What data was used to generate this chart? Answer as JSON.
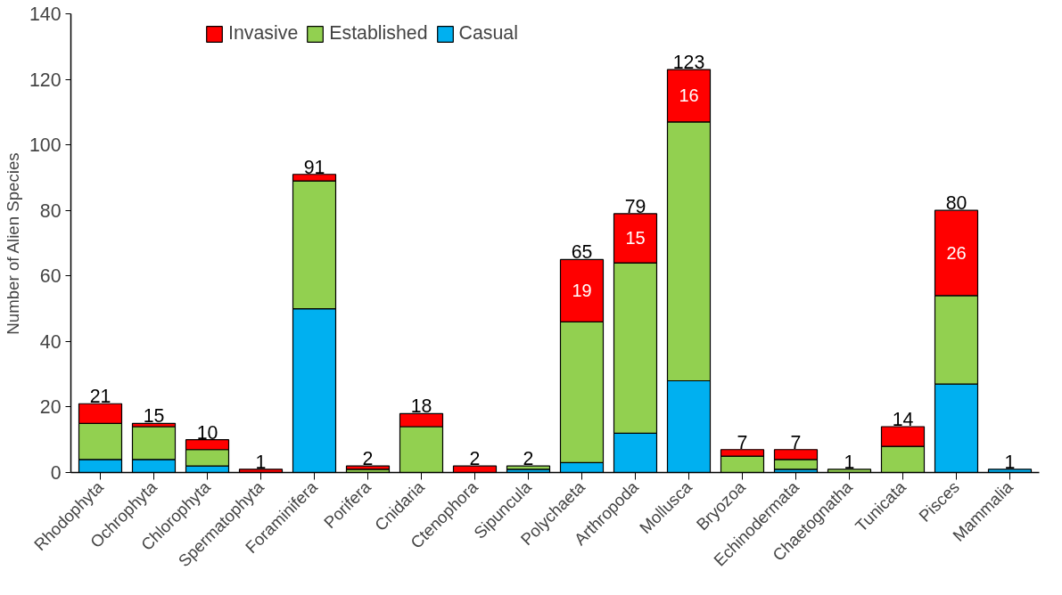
{
  "chart_data": {
    "type": "bar",
    "stacked": true,
    "ylabel": "Number of Alien Species",
    "categories": [
      "Rhodophyta",
      "Ochrophyta",
      "Chlorophyta",
      "Spermatophyta",
      "Foraminifera",
      "Porifera",
      "Cnidaria",
      "Ctenophora",
      "Sipuncula",
      "Polychaeta",
      "Arthropoda",
      "Mollusca",
      "Bryozoa",
      "Echinodermata",
      "Chaetognatha",
      "Tunicata",
      "Pisces",
      "Mammalia"
    ],
    "series": [
      {
        "name": "Casual",
        "color": "#00b0f0",
        "values": [
          4,
          4,
          2,
          0,
          50,
          0,
          0,
          0,
          1,
          3,
          12,
          28,
          0,
          1,
          0,
          0,
          27,
          1
        ]
      },
      {
        "name": "Established",
        "color": "#92d050",
        "values": [
          11,
          10,
          5,
          0,
          39,
          1,
          14,
          0,
          1,
          43,
          52,
          79,
          5,
          3,
          1,
          8,
          27,
          0
        ]
      },
      {
        "name": "Invasive",
        "color": "#ff0000",
        "values": [
          6,
          1,
          3,
          1,
          2,
          1,
          4,
          2,
          0,
          19,
          15,
          16,
          2,
          3,
          0,
          6,
          26,
          0
        ],
        "value_labels": [
          null,
          null,
          null,
          null,
          null,
          null,
          null,
          null,
          null,
          "19",
          "15",
          "16",
          null,
          null,
          null,
          null,
          "26",
          null
        ]
      }
    ],
    "totals": [
      "21",
      "15",
      "10",
      "1",
      "91",
      "2",
      "18",
      "2",
      "2",
      "65",
      "79",
      "123",
      "7",
      "7",
      "1",
      "14",
      "80",
      "1"
    ],
    "ylim": [
      0,
      140
    ],
    "yticks": [
      0,
      20,
      40,
      60,
      80,
      100,
      120,
      140
    ],
    "grid": false,
    "legend": "top left"
  }
}
